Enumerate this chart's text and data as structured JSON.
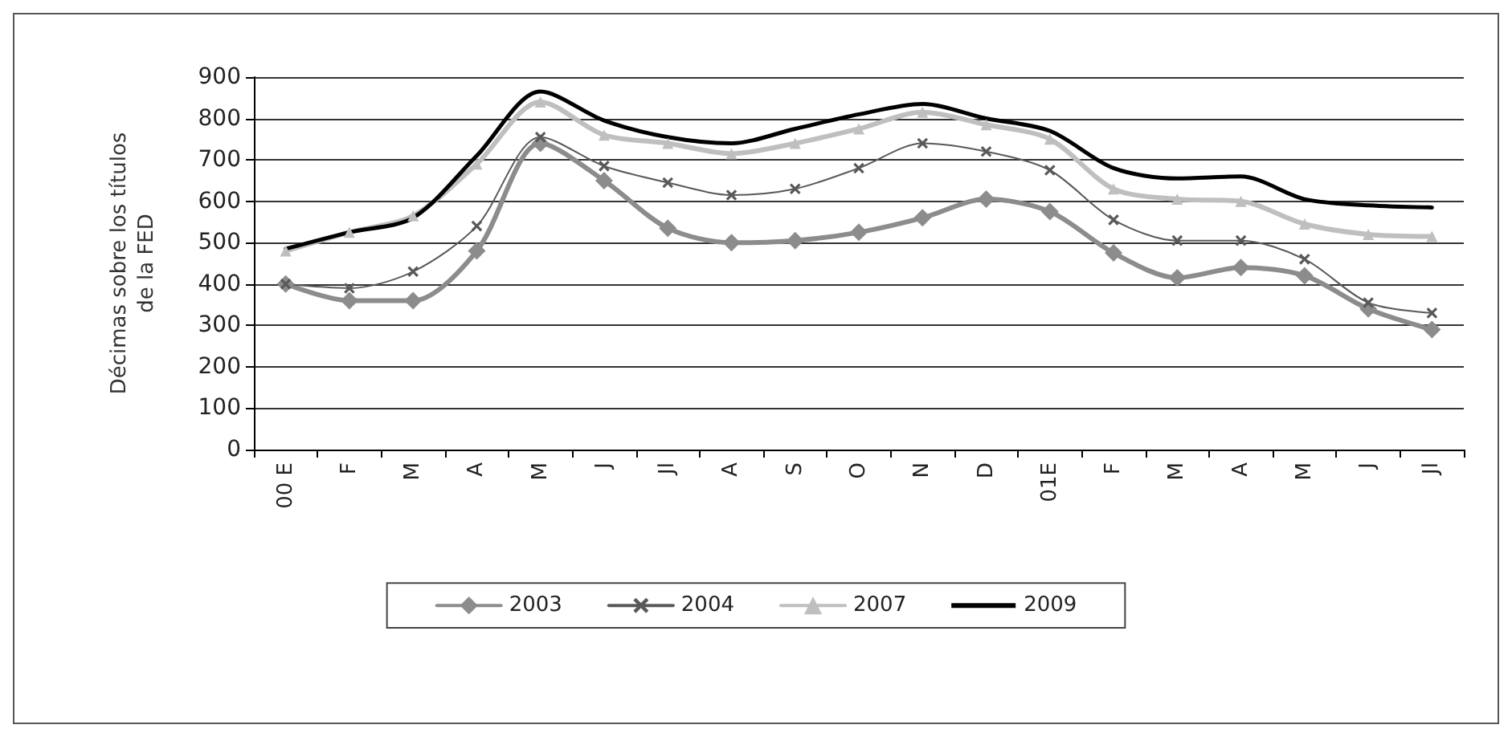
{
  "chart_data": {
    "type": "line",
    "ylabel": "Décimas sobre los títulos\nde la FED",
    "categories": [
      "00 E",
      "F",
      "M",
      "A",
      "M",
      "J",
      "Jl",
      "A",
      "S",
      "O",
      "N",
      "D",
      "01E",
      "F",
      "M",
      "A",
      "M",
      "J",
      "Jl"
    ],
    "series": [
      {
        "name": "2003",
        "color": "#8c8c8c",
        "marker": "diamond",
        "values": [
          400,
          360,
          360,
          480,
          740,
          650,
          535,
          500,
          505,
          525,
          560,
          605,
          575,
          475,
          415,
          440,
          420,
          340,
          290
        ]
      },
      {
        "name": "2004",
        "color": "#595959",
        "marker": "cross",
        "values": [
          400,
          390,
          430,
          540,
          755,
          685,
          645,
          615,
          630,
          680,
          740,
          720,
          675,
          555,
          505,
          505,
          460,
          355,
          330
        ]
      },
      {
        "name": "2007",
        "color": "#bfbfbf",
        "marker": "triangle",
        "values": [
          480,
          525,
          565,
          690,
          840,
          760,
          740,
          715,
          740,
          775,
          815,
          785,
          750,
          630,
          605,
          600,
          545,
          520,
          515
        ]
      },
      {
        "name": "2009",
        "color": "#000000",
        "marker": "none",
        "values": [
          485,
          525,
          560,
          710,
          865,
          795,
          755,
          740,
          775,
          810,
          835,
          800,
          770,
          680,
          655,
          660,
          605,
          590,
          585
        ]
      }
    ],
    "ylim": [
      0,
      900
    ],
    "yticks": [
      0,
      100,
      200,
      300,
      400,
      500,
      600,
      700,
      800,
      900
    ],
    "grid": "y",
    "legend": "bottom",
    "line_style": "solid"
  }
}
